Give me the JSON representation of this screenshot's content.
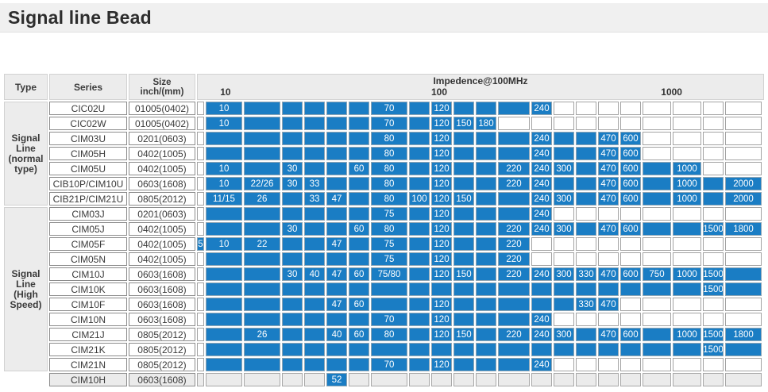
{
  "title": "Signal line Bead",
  "table": {
    "headers": {
      "type": "Type",
      "series": "Series",
      "size": "Size\ninch/(mm)",
      "impedance": "Impedence@100MHz",
      "scale": [
        "10",
        "100",
        "1000"
      ]
    },
    "groups": [
      {
        "label": "Signal\nLine\n(normal\ntype)"
      },
      {
        "label": "Signal\nLine\n(High\nSpeed)"
      }
    ],
    "colors": {
      "bar_fill": "#1a7dc4",
      "bar_text": "#ffffff",
      "header_bg": "#ececec",
      "muted_row_bg": "#ebebeb"
    },
    "rows": [
      {
        "series": "CIC02U",
        "size": "01005(0402)",
        "muted": false,
        "cells": [
          null,
          "10",
          "",
          "",
          "",
          "",
          "",
          "70",
          "",
          "120",
          "",
          "",
          "",
          "240",
          null,
          null,
          null,
          null,
          null,
          null,
          null,
          null
        ]
      },
      {
        "series": "CIC02W",
        "size": "01005(0402)",
        "muted": false,
        "cells": [
          null,
          "10",
          "",
          "",
          "",
          "",
          "",
          "70",
          "",
          "120",
          "150",
          "180",
          null,
          null,
          null,
          null,
          null,
          null,
          null,
          null,
          null,
          null
        ]
      },
      {
        "series": "CIM03U",
        "size": "0201(0603)",
        "muted": false,
        "cells": [
          null,
          "",
          "",
          "",
          "",
          "",
          "",
          "80",
          "",
          "120",
          "",
          "",
          "",
          "240",
          "",
          "",
          "470",
          "600",
          null,
          null,
          null,
          null
        ]
      },
      {
        "series": "CIM05H",
        "size": "0402(1005)",
        "muted": false,
        "cells": [
          null,
          "",
          "",
          "",
          "",
          "",
          "",
          "80",
          "",
          "120",
          "",
          "",
          "",
          "240",
          "",
          "",
          "470",
          "600",
          null,
          null,
          null,
          null
        ]
      },
      {
        "series": "CIM05U",
        "size": "0402(1005)",
        "muted": false,
        "cells": [
          null,
          "10",
          "",
          "30",
          "",
          "",
          "60",
          "80",
          "",
          "120",
          "",
          "",
          "220",
          "240",
          "300",
          "",
          "470",
          "600",
          "",
          "1000",
          null,
          null
        ]
      },
      {
        "series": "CIB10P/CIM10U",
        "size": "0603(1608)",
        "muted": false,
        "cells": [
          null,
          "10",
          "22/26",
          "30",
          "33",
          "",
          "",
          "80",
          "",
          "120",
          "",
          "",
          "220",
          "240",
          "",
          "",
          "470",
          "600",
          "",
          "1000",
          "",
          "2000"
        ]
      },
      {
        "series": "CIB21P/CIM21U",
        "size": "0805(2012)",
        "muted": false,
        "cells": [
          null,
          "11/15",
          "26",
          "",
          "33",
          "47",
          "",
          "80",
          "100",
          "120",
          "150",
          "",
          "",
          "240",
          "300",
          "",
          "470",
          "600",
          "",
          "1000",
          "",
          "2000"
        ]
      },
      {
        "series": "CIM03J",
        "size": "0201(0603)",
        "muted": false,
        "cells": [
          null,
          "",
          "",
          "",
          "",
          "",
          "",
          "75",
          "",
          "120",
          "",
          "",
          "",
          "240",
          null,
          null,
          null,
          null,
          null,
          null,
          null,
          null
        ]
      },
      {
        "series": "CIM05J",
        "size": "0402(1005)",
        "muted": false,
        "cells": [
          null,
          "",
          "",
          "30",
          "",
          "",
          "60",
          "80",
          "",
          "120",
          "",
          "",
          "220",
          "240",
          "300",
          "",
          "470",
          "600",
          "",
          "",
          "1500",
          "1800"
        ]
      },
      {
        "series": "CIM05F",
        "size": "0402(1005)",
        "muted": false,
        "cells": [
          "5",
          "10",
          "22",
          "",
          "",
          "47",
          "",
          "75",
          "",
          "120",
          "",
          "",
          "220",
          null,
          null,
          null,
          null,
          null,
          null,
          null,
          null,
          null
        ]
      },
      {
        "series": "CIM05N",
        "size": "0402(1005)",
        "muted": false,
        "cells": [
          null,
          "",
          "",
          "",
          "",
          "",
          "",
          "75",
          "",
          "120",
          "",
          "",
          "220",
          null,
          null,
          null,
          null,
          null,
          null,
          null,
          null,
          null
        ]
      },
      {
        "series": "CIM10J",
        "size": "0603(1608)",
        "muted": false,
        "cells": [
          null,
          "",
          "",
          "30",
          "40",
          "47",
          "60",
          "75/80",
          "",
          "120",
          "150",
          "",
          "220",
          "240",
          "300",
          "330",
          "470",
          "600",
          "750",
          "1000",
          "1500",
          ""
        ]
      },
      {
        "series": "CIM10K",
        "size": "0603(1608)",
        "muted": false,
        "cells": [
          null,
          "",
          "",
          "",
          "",
          "",
          "",
          "",
          "",
          "",
          "",
          "",
          "",
          "",
          "",
          "",
          "",
          "",
          "",
          "",
          "1500",
          ""
        ]
      },
      {
        "series": "CIM10F",
        "size": "0603(1608)",
        "muted": false,
        "cells": [
          null,
          "",
          "",
          "",
          "",
          "47",
          "60",
          "",
          "",
          "120",
          "",
          "",
          "",
          "",
          "",
          "330",
          "470",
          null,
          null,
          null,
          null,
          null
        ]
      },
      {
        "series": "CIM10N",
        "size": "0603(1608)",
        "muted": false,
        "cells": [
          null,
          "",
          "",
          "",
          "",
          "",
          "",
          "70",
          "",
          "120",
          "",
          "",
          "",
          "240",
          null,
          null,
          null,
          null,
          null,
          null,
          null,
          null
        ]
      },
      {
        "series": "CIM21J",
        "size": "0805(2012)",
        "muted": false,
        "cells": [
          null,
          "",
          "26",
          "",
          "",
          "40",
          "60",
          "80",
          "",
          "120",
          "150",
          "",
          "220",
          "240",
          "300",
          "",
          "470",
          "600",
          "",
          "1000",
          "1500",
          "1800"
        ]
      },
      {
        "series": "CIM21K",
        "size": "0805(2012)",
        "muted": false,
        "cells": [
          null,
          "",
          "",
          "",
          "",
          "",
          "",
          "",
          "",
          "",
          "",
          "",
          "",
          "",
          "",
          "",
          "",
          "",
          "",
          "",
          "1500",
          ""
        ]
      },
      {
        "series": "CIM21N",
        "size": "0805(2012)",
        "muted": false,
        "cells": [
          null,
          "",
          "",
          "",
          "",
          "",
          "",
          "70",
          "",
          "120",
          "",
          "",
          "",
          "240",
          null,
          null,
          null,
          null,
          null,
          null,
          null,
          null
        ]
      },
      {
        "series": "CIM10H",
        "size": "0603(1608)",
        "muted": true,
        "cells": [
          null,
          null,
          null,
          null,
          null,
          "52",
          null,
          null,
          null,
          null,
          null,
          null,
          null,
          null,
          null,
          null,
          null,
          null,
          null,
          null,
          null,
          null
        ]
      }
    ]
  }
}
